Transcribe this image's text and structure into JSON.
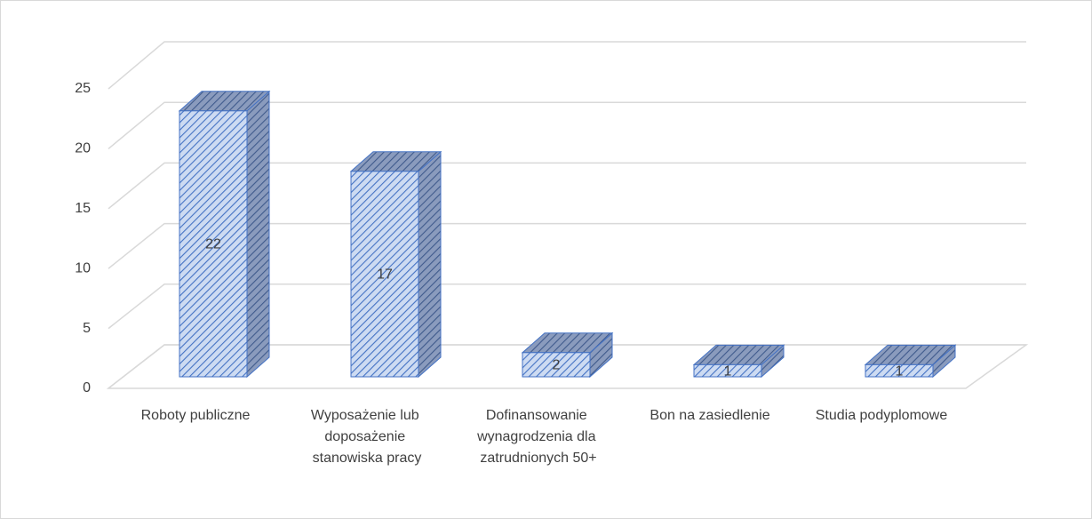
{
  "chart_data": {
    "type": "bar3d",
    "categories": [
      "Roboty publiczne",
      "Wyposażenie lub doposażenie stanowiska pracy",
      "Dofinansowanie wynagrodzenia dla zatrudnionych 50+",
      "Bon na zasiedlenie",
      "Studia podyplomowe"
    ],
    "values": [
      22,
      17,
      2,
      1,
      1
    ],
    "color": "#4472c4",
    "ylim": [
      0,
      25
    ],
    "yticks": [
      0,
      5,
      10,
      15,
      20,
      25
    ],
    "grid": true
  }
}
